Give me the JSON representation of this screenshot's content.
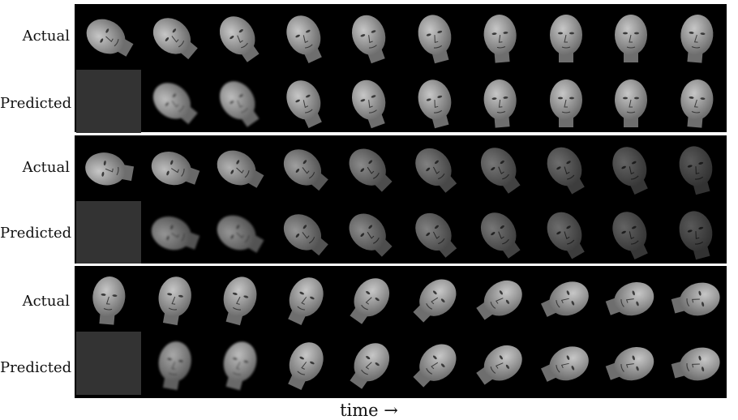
{
  "labels": {
    "actual": "Actual",
    "predicted": "Predicted"
  },
  "caption": "time →",
  "colors": {
    "background": "#000000",
    "face": "#b8b8b8",
    "face_shadow": "#6e6e6e",
    "blank_frame": "#333333"
  },
  "sequences": [
    {
      "name": "sequence-1",
      "actual_angles": [
        -60,
        -50,
        -35,
        -25,
        -20,
        -15,
        -5,
        0,
        0,
        5
      ],
      "actual_brightness": [
        1.0,
        1.0,
        1.0,
        1.0,
        1.0,
        1.0,
        1.0,
        1.0,
        1.0,
        1.0
      ],
      "predicted_angles": [
        -50,
        -35,
        -25,
        -20,
        -15,
        -5,
        0,
        0,
        5
      ],
      "predicted_brightness": [
        0.95,
        0.95,
        1.0,
        1.0,
        1.0,
        1.0,
        1.0,
        1.0,
        1.0
      ]
    },
    {
      "name": "sequence-2",
      "actual_angles": [
        -80,
        -70,
        -60,
        -50,
        -45,
        -40,
        -35,
        -30,
        -25,
        -15
      ],
      "actual_brightness": [
        1.0,
        0.95,
        0.9,
        0.8,
        0.7,
        0.65,
        0.6,
        0.55,
        0.5,
        0.45
      ],
      "predicted_angles": [
        -70,
        -60,
        -50,
        -45,
        -40,
        -35,
        -30,
        -25,
        -15
      ],
      "predicted_brightness": [
        0.75,
        0.75,
        0.75,
        0.7,
        0.65,
        0.6,
        0.55,
        0.5,
        0.45
      ]
    },
    {
      "name": "sequence-3",
      "actual_angles": [
        5,
        10,
        15,
        25,
        35,
        45,
        55,
        65,
        70,
        75
      ],
      "actual_brightness": [
        1.0,
        1.0,
        1.0,
        1.0,
        1.0,
        1.0,
        1.0,
        1.0,
        1.0,
        1.0
      ],
      "predicted_angles": [
        10,
        15,
        25,
        35,
        45,
        55,
        65,
        70,
        75
      ],
      "predicted_brightness": [
        0.85,
        0.95,
        1.0,
        1.0,
        1.0,
        1.0,
        1.0,
        1.0,
        1.0
      ]
    }
  ]
}
